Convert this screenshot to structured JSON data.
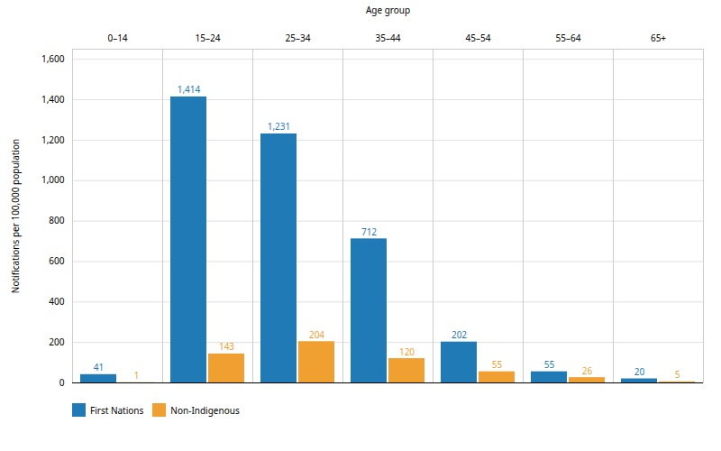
{
  "chart_data": {
    "type": "bar",
    "xlabel": "Age group",
    "ylabel": "Notifications per 100,000 population",
    "categories": [
      "0–14",
      "15–24",
      "25–34",
      "35–44",
      "45–54",
      "55–64",
      "65+"
    ],
    "series": [
      {
        "name": "First Nations",
        "color": "#1f7ab5",
        "values": [
          41,
          1414,
          1231,
          712,
          202,
          55,
          20
        ],
        "value_labels": [
          "41",
          "1,414",
          "1,231",
          "712",
          "202",
          "55",
          "20"
        ]
      },
      {
        "name": "Non-Indigenous",
        "color": "#f0a030",
        "values": [
          1,
          143,
          204,
          120,
          55,
          26,
          5
        ]
      }
    ],
    "ylim": [
      0,
      1650
    ],
    "yticks": [
      0,
      200,
      400,
      600,
      800,
      {
        "value": 1000,
        "label": "1,000"
      },
      {
        "value": 1200,
        "label": "1,200"
      },
      {
        "value": 1400,
        "label": "1,400"
      },
      {
        "value": 1600,
        "label": "1,600"
      }
    ],
    "grid": true,
    "legend": "lower left",
    "data_labels": true
  }
}
